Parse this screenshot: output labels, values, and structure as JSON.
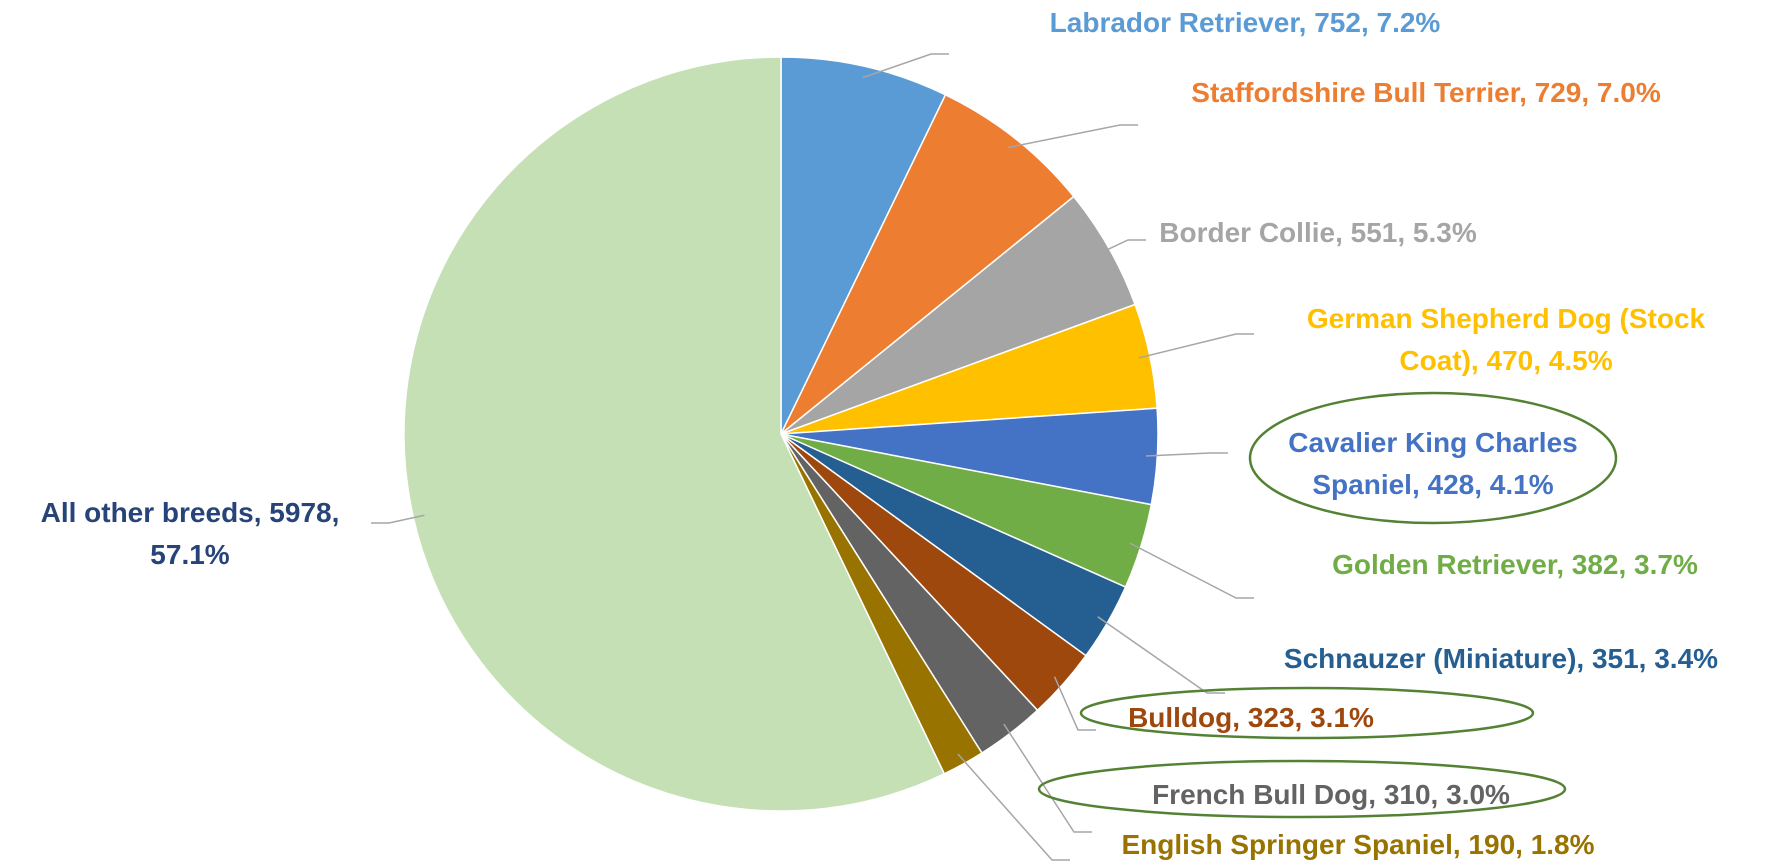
{
  "chart_data": {
    "type": "pie",
    "values": [
      752,
      729,
      551,
      470,
      428,
      382,
      351,
      323,
      310,
      190,
      5978
    ],
    "value_labels": [
      "Labrador Retriever, 752, 7.2%",
      "Staffordshire Bull Terrier, 729, 7.0%",
      "Border Collie, 551, 5.3%",
      "German Shepherd Dog (Stock Coat), 470, 4.5%",
      "Cavalier King Charles Spaniel, 428, 4.1%",
      "Golden Retriever, 382, 3.7%",
      "Schnauzer (Miniature), 351, 3.4%",
      "Bulldog, 323, 3.1%",
      "French Bull Dog, 310, 3.0%",
      "English Springer Spaniel, 190, 1.8%",
      "All other breeds, 5978, 57.1%"
    ],
    "colors": [
      "#5b9bd5",
      "#ed7d31",
      "#a5a5a5",
      "#ffc000",
      "#4472c4",
      "#70ad47",
      "#255e91",
      "#9e480e",
      "#636363",
      "#997300",
      "#c5e0b4"
    ],
    "label_colors": [
      "#5b9bd5",
      "#ed7d31",
      "#a5a5a5",
      "#ffc000",
      "#4472c4",
      "#70ad47",
      "#255e91",
      "#9e480e",
      "#636363",
      "#997300",
      "#264478"
    ]
  }
}
